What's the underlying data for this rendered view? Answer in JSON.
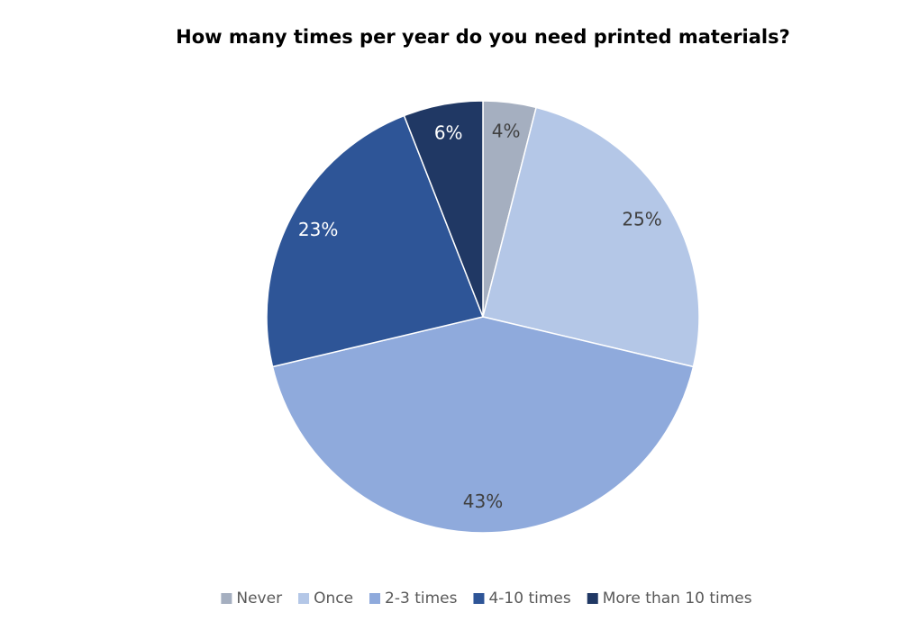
{
  "chart_data": {
    "type": "pie",
    "title": "How many times per year do you need printed materials?",
    "categories": [
      "Never",
      "Once",
      "2-3 times",
      "4-10 times",
      "More than 10 times"
    ],
    "values": [
      4,
      25,
      43,
      23,
      6
    ],
    "value_labels": [
      "4%",
      "25%",
      "43%",
      "23%",
      "6%"
    ],
    "colors": [
      "#a5afc0",
      "#b4c7e7",
      "#8faadc",
      "#2e5597",
      "#203864"
    ],
    "legend": "bottom"
  }
}
